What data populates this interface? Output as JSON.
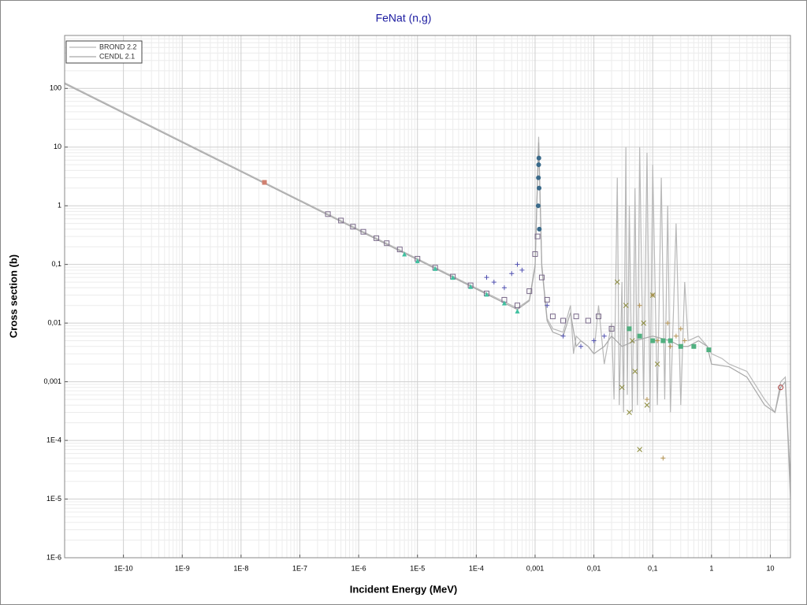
{
  "chart_data": {
    "type": "line",
    "title": "FeNat (n,g)",
    "x_label": "Incident Energy (MeV)",
    "y_label": "Cross section (b)",
    "log_x": true,
    "log_y": true,
    "grid": true,
    "minor_grid": true,
    "legend": "upper left",
    "xlim": [
      1e-11,
      22
    ],
    "ylim": [
      1e-06,
      800
    ],
    "xticks": [
      {
        "value": 1e-10,
        "label": "1E-10"
      },
      {
        "value": 1e-09,
        "label": "1E-9"
      },
      {
        "value": 1e-08,
        "label": "1E-8"
      },
      {
        "value": 1e-07,
        "label": "1E-7"
      },
      {
        "value": 1e-06,
        "label": "1E-6"
      },
      {
        "value": 1e-05,
        "label": "1E-5"
      },
      {
        "value": 0.0001,
        "label": "1E-4"
      },
      {
        "value": 0.001,
        "label": "0,001"
      },
      {
        "value": 0.01,
        "label": "0,01"
      },
      {
        "value": 0.1,
        "label": "0,1"
      },
      1,
      10
    ],
    "yticks": [
      {
        "value": 1e-06,
        "label": "1E-6"
      },
      {
        "value": 1e-05,
        "label": "1E-5"
      },
      {
        "value": 0.0001,
        "label": "1E-4"
      },
      {
        "value": 0.001,
        "label": "0,001"
      },
      {
        "value": 0.01,
        "label": "0,01"
      },
      {
        "value": 0.1,
        "label": "0,1"
      },
      1,
      10,
      100
    ],
    "series": [
      {
        "name": "BROND 2.2",
        "color": "#b8b8b8",
        "x": [
          1e-11,
          1e-08,
          1e-06,
          1e-05,
          0.0001,
          0.0005,
          0.0008,
          0.001,
          0.00115,
          0.0013,
          0.0016,
          0.002,
          0.003,
          0.004,
          0.0045,
          0.005,
          0.006,
          0.008,
          0.01,
          0.012,
          0.015,
          0.02,
          0.022,
          0.025,
          0.027,
          0.03,
          0.032,
          0.035,
          0.037,
          0.04,
          0.045,
          0.05,
          0.055,
          0.06,
          0.07,
          0.08,
          0.09,
          0.1,
          0.12,
          0.14,
          0.16,
          0.18,
          0.2,
          0.25,
          0.3,
          0.35,
          0.4,
          0.6,
          0.85,
          1,
          1.5,
          2,
          4,
          8,
          12,
          15,
          18,
          22
        ],
        "values": [
          125,
          3.95,
          0.395,
          0.125,
          0.0395,
          0.018,
          0.025,
          0.1,
          15,
          0.1,
          0.012,
          0.008,
          0.007,
          0.02,
          0.003,
          0.006,
          0.005,
          0.004,
          0.003,
          0.02,
          0.002,
          0.01,
          0.0005,
          3,
          0.0004,
          0.05,
          0.0003,
          10,
          0.0006,
          1,
          0.0003,
          2,
          0.0004,
          10,
          0.0005,
          8,
          0.0003,
          5,
          0.0004,
          3,
          0.0005,
          1,
          0.0003,
          0.5,
          0.0004,
          0.05,
          0.005,
          0.006,
          0.004,
          0.003,
          0.0025,
          0.002,
          0.0015,
          0.0005,
          0.0003,
          0.001,
          0.0012,
          1e-05
        ]
      },
      {
        "name": "CENDL 2.1",
        "color": "#a8a8a8",
        "x": [
          1e-11,
          1e-08,
          1e-06,
          1e-05,
          0.0001,
          0.0005,
          0.0008,
          0.001,
          0.00115,
          0.0013,
          0.0016,
          0.002,
          0.003,
          0.004,
          0.005,
          0.006,
          0.008,
          0.01,
          0.015,
          0.02,
          0.03,
          0.05,
          0.1,
          0.2,
          0.3,
          0.4,
          0.6,
          0.85,
          1,
          2,
          4,
          8,
          12,
          15,
          18,
          22
        ],
        "values": [
          120,
          3.8,
          0.38,
          0.12,
          0.038,
          0.017,
          0.024,
          0.09,
          12,
          0.09,
          0.011,
          0.007,
          0.006,
          0.015,
          0.004,
          0.005,
          0.004,
          0.003,
          0.004,
          0.006,
          0.004,
          0.005,
          0.006,
          0.005,
          0.004,
          0.004,
          0.005,
          0.004,
          0.002,
          0.0018,
          0.0012,
          0.0004,
          0.0003,
          0.0008,
          0.001,
          2e-05
        ]
      },
      {
        "color": "#7a6a8a",
        "marker": "square-open",
        "x": [
          3e-07,
          5e-07,
          8e-07,
          1.2e-06,
          2e-06,
          3e-06,
          5e-06,
          1e-05,
          2e-05,
          4e-05,
          8e-05,
          0.00015,
          0.0003,
          0.0005,
          0.0008,
          0.001,
          0.0011,
          0.0013,
          0.0016,
          0.002,
          0.003,
          0.005,
          0.008,
          0.012,
          0.02
        ],
        "values": [
          0.72,
          0.56,
          0.44,
          0.36,
          0.28,
          0.23,
          0.18,
          0.125,
          0.088,
          0.062,
          0.044,
          0.032,
          0.025,
          0.02,
          0.035,
          0.15,
          0.3,
          0.06,
          0.025,
          0.013,
          0.011,
          0.013,
          0.011,
          0.013,
          0.008
        ]
      },
      {
        "color": "#40c0a0",
        "marker": "triangle",
        "x": [
          6e-06,
          1e-05,
          2e-05,
          4e-05,
          8e-05,
          0.00015,
          0.0003,
          0.0005
        ],
        "values": [
          0.15,
          0.115,
          0.085,
          0.06,
          0.042,
          0.031,
          0.022,
          0.016
        ]
      },
      {
        "color": "#3a6a8a",
        "marker": "circle",
        "x": [
          0.00113,
          0.00114,
          0.00115,
          0.00116,
          0.00117,
          0.00118
        ],
        "values": [
          1,
          3,
          5,
          6.5,
          2,
          0.4
        ]
      },
      {
        "color": "#5050b0",
        "marker": "plus",
        "x": [
          0.00015,
          0.0002,
          0.0003,
          0.0004,
          0.0005,
          0.0006,
          0.0016,
          0.003,
          0.006,
          0.01,
          0.015
        ],
        "values": [
          0.06,
          0.05,
          0.04,
          0.07,
          0.1,
          0.08,
          0.02,
          0.006,
          0.004,
          0.005,
          0.006
        ]
      },
      {
        "color": "#8a8a3a",
        "marker": "x",
        "x": [
          0.025,
          0.03,
          0.035,
          0.04,
          0.045,
          0.05,
          0.06,
          0.07,
          0.08,
          0.1,
          0.12
        ],
        "values": [
          0.05,
          0.0008,
          0.02,
          0.0003,
          0.005,
          0.0015,
          7e-05,
          0.01,
          0.0004,
          0.03,
          0.002
        ]
      },
      {
        "color": "#b09050",
        "marker": "plus",
        "x": [
          0.06,
          0.08,
          0.1,
          0.12,
          0.15,
          0.18,
          0.2,
          0.25,
          0.3,
          0.35
        ],
        "values": [
          0.02,
          0.0005,
          0.03,
          0.005,
          5e-05,
          0.01,
          0.004,
          0.006,
          0.008,
          0.005
        ]
      },
      {
        "color": "#50b080",
        "marker": "square",
        "x": [
          0.04,
          0.06,
          0.1,
          0.15,
          0.2,
          0.3,
          0.5,
          0.9
        ],
        "values": [
          0.008,
          0.006,
          0.005,
          0.005,
          0.005,
          0.004,
          0.004,
          0.0035
        ]
      },
      {
        "color": "#d08070",
        "marker": "square",
        "x": [
          2.5e-08
        ],
        "values": [
          2.5
        ]
      },
      {
        "color": "#b04040",
        "marker": "circle-open",
        "x": [
          15
        ],
        "values": [
          0.0008
        ]
      }
    ]
  }
}
